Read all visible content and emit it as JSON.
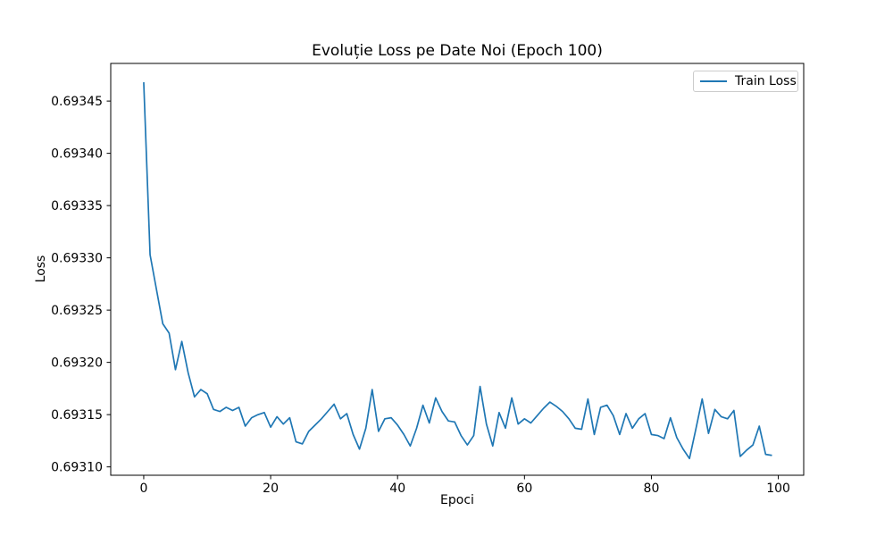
{
  "chart_data": {
    "type": "line",
    "title": "Evoluție Loss pe Date Noi (Epoch 100)",
    "xlabel": "Epoci",
    "ylabel": "Loss",
    "grid": false,
    "legend_position": "upper right",
    "line_color": "#1f77b4",
    "axis_color": "#000000",
    "background_color": "#ffffff",
    "xlim": [
      -5.2,
      104.0
    ],
    "ylim": [
      0.693092,
      0.693486
    ],
    "xticks": [
      0,
      20,
      40,
      60,
      80,
      100
    ],
    "yticks": [
      0.6931,
      0.69315,
      0.6932,
      0.69325,
      0.6933,
      0.69335,
      0.6934,
      0.69345
    ],
    "ytick_decimals": 5,
    "series": [
      {
        "name": "Train Loss",
        "x": [
          0,
          1,
          2,
          3,
          4,
          5,
          6,
          7,
          8,
          9,
          10,
          11,
          12,
          13,
          14,
          15,
          16,
          17,
          18,
          19,
          20,
          21,
          22,
          23,
          24,
          25,
          26,
          27,
          28,
          29,
          30,
          31,
          32,
          33,
          34,
          35,
          36,
          37,
          38,
          39,
          40,
          41,
          42,
          43,
          44,
          45,
          46,
          47,
          48,
          49,
          50,
          51,
          52,
          53,
          54,
          55,
          56,
          57,
          58,
          59,
          60,
          61,
          62,
          63,
          64,
          65,
          66,
          67,
          68,
          69,
          70,
          71,
          72,
          73,
          74,
          75,
          76,
          77,
          78,
          79,
          80,
          81,
          82,
          83,
          84,
          85,
          86,
          87,
          88,
          89,
          90,
          91,
          92,
          93,
          94,
          95,
          96,
          97,
          98,
          99
        ],
        "values": [
          0.693468,
          0.693303,
          0.69327,
          0.693237,
          0.693228,
          0.693193,
          0.69322,
          0.69319,
          0.693167,
          0.693174,
          0.69317,
          0.693155,
          0.693153,
          0.693157,
          0.693154,
          0.693157,
          0.693139,
          0.693147,
          0.69315,
          0.693152,
          0.693138,
          0.693148,
          0.693141,
          0.693147,
          0.693124,
          0.693122,
          0.693134,
          0.69314,
          0.693146,
          0.693153,
          0.69316,
          0.693146,
          0.693151,
          0.693131,
          0.693117,
          0.693137,
          0.693174,
          0.693134,
          0.693146,
          0.693147,
          0.69314,
          0.693131,
          0.69312,
          0.693137,
          0.693159,
          0.693142,
          0.693166,
          0.693153,
          0.693144,
          0.693143,
          0.69313,
          0.693121,
          0.69313,
          0.693177,
          0.693141,
          0.69312,
          0.693152,
          0.693137,
          0.693166,
          0.693141,
          0.693146,
          0.693142,
          0.693149,
          0.693156,
          0.693162,
          0.693158,
          0.693153,
          0.693146,
          0.693137,
          0.693136,
          0.693165,
          0.693131,
          0.693157,
          0.693159,
          0.693149,
          0.693131,
          0.693151,
          0.693137,
          0.693146,
          0.693151,
          0.693131,
          0.69313,
          0.693127,
          0.693147,
          0.693128,
          0.693117,
          0.693108,
          0.693136,
          0.693165,
          0.693132,
          0.693155,
          0.693148,
          0.693146,
          0.693154,
          0.69311,
          0.693116,
          0.693121,
          0.693139,
          0.693112,
          0.693111
        ]
      }
    ]
  }
}
